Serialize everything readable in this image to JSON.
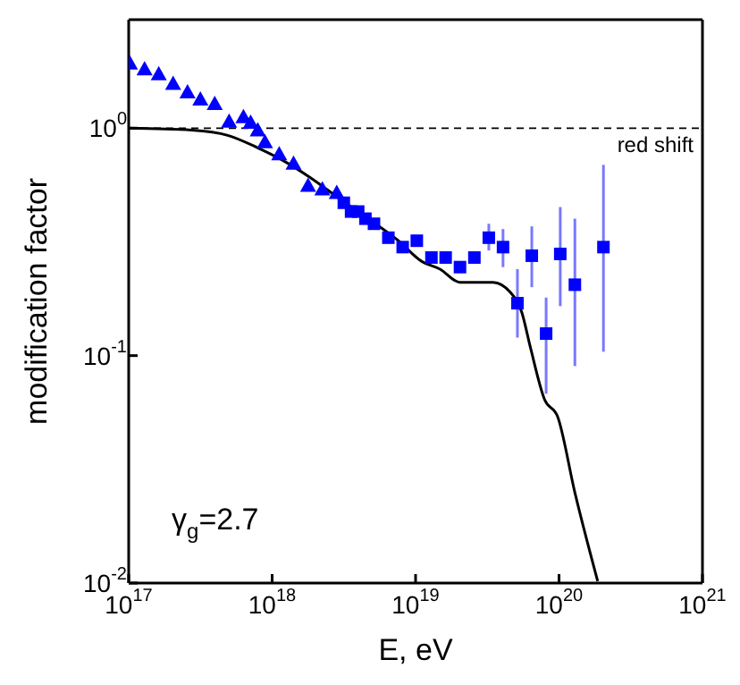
{
  "chart_data": {
    "type": "scatter",
    "xlabel": "E, eV",
    "ylabel": "modification factor",
    "log": "xy",
    "xlim": [
      1e+17,
      1e+21
    ],
    "xticks": [
      {
        "value": 1e+17,
        "label": "10$^{17}$"
      },
      {
        "value": 1e+18,
        "label": "10$^{18}$"
      },
      {
        "value": 1e+19,
        "label": "10$^{19}$"
      },
      {
        "value": 1e+20,
        "label": "10$^{20}$"
      },
      {
        "value": 1e+21,
        "label": "10$^{21}$"
      }
    ],
    "ylim": [
      0.01,
      3
    ],
    "yticks": [
      {
        "value": 0.01,
        "label": "10$^{-2}$"
      },
      {
        "value": 0.1,
        "label": "10$^{-1}$"
      },
      {
        "value": 1,
        "label": "10$^{0}$"
      }
    ],
    "grid": false,
    "legend": false,
    "ref_lines": [
      {
        "axis": "y",
        "value": 1,
        "label": "red shift",
        "color": "#000000",
        "line_style": "dashed"
      }
    ],
    "annotations": [
      "γ$_{g}$=2.7"
    ],
    "series": [
      {
        "marker": "triangle",
        "color": "#0000ff",
        "x": [
          1.02e+17,
          1.29e+17,
          1.62e+17,
          2.04e+17,
          2.57e+17,
          3.16e+17,
          3.98e+17,
          5.01e+17,
          6.31e+17,
          7.08e+17,
          7.94e+17,
          8.91e+17,
          1.12e+18,
          1.41e+18,
          1.78e+18,
          2.24e+18,
          2.82e+18
        ],
        "values": [
          1.93,
          1.82,
          1.73,
          1.57,
          1.44,
          1.34,
          1.28,
          1.07,
          1.12,
          1.06,
          0.98,
          0.87,
          0.77,
          0.7,
          0.56,
          0.54,
          0.52
        ]
      },
      {
        "marker": "square",
        "color": "#0000ff",
        "x": [
          3.16e+18,
          3.55e+18,
          3.98e+18,
          4.47e+18,
          5.13e+18,
          6.46e+18,
          8.13e+18,
          1.02e+19,
          1.29e+19,
          1.62e+19,
          2.04e+19,
          2.57e+19,
          3.24e+19,
          4.07e+19,
          5.13e+19,
          6.46e+19,
          8.13e+19,
          1.02e+20,
          1.29e+20,
          2.04e+20
        ],
        "values": [
          0.47,
          0.43,
          0.43,
          0.4,
          0.38,
          0.33,
          0.3,
          0.32,
          0.27,
          0.27,
          0.245,
          0.27,
          0.33,
          0.3,
          0.17,
          0.275,
          0.125,
          0.28,
          0.205,
          0.3
        ],
        "errors": [
          null,
          null,
          null,
          null,
          null,
          null,
          null,
          null,
          null,
          null,
          null,
          null,
          [
            0.29,
            0.38
          ],
          [
            0.245,
            0.36
          ],
          [
            0.12,
            0.24
          ],
          [
            0.2,
            0.37
          ],
          [
            0.068,
            0.18
          ],
          [
            0.165,
            0.45
          ],
          [
            0.09,
            0.4
          ],
          [
            0.104,
            0.69
          ]
        ]
      },
      {
        "type": "line",
        "marker": "none",
        "line_style": "solid",
        "color": "#000000",
        "x": [
          1e+17,
          2.75e+17,
          4.9e+17,
          7.94e+17,
          1.15e+18,
          1.82e+18,
          2.95e+18,
          4.68e+18,
          7.59e+18,
          1.1e+19,
          1.48e+19,
          2.04e+19,
          3.47e+19,
          4.57e+19,
          5.5e+19,
          6.31e+19,
          7.94e+19,
          9.77e+19,
          1.29e+20,
          1.86e+20
        ],
        "values": [
          1.0,
          0.98,
          0.93,
          0.82,
          0.73,
          0.61,
          0.49,
          0.4,
          0.32,
          0.26,
          0.24,
          0.21,
          0.21,
          0.19,
          0.155,
          0.109,
          0.064,
          0.054,
          0.025,
          0.0102
        ]
      }
    ]
  }
}
